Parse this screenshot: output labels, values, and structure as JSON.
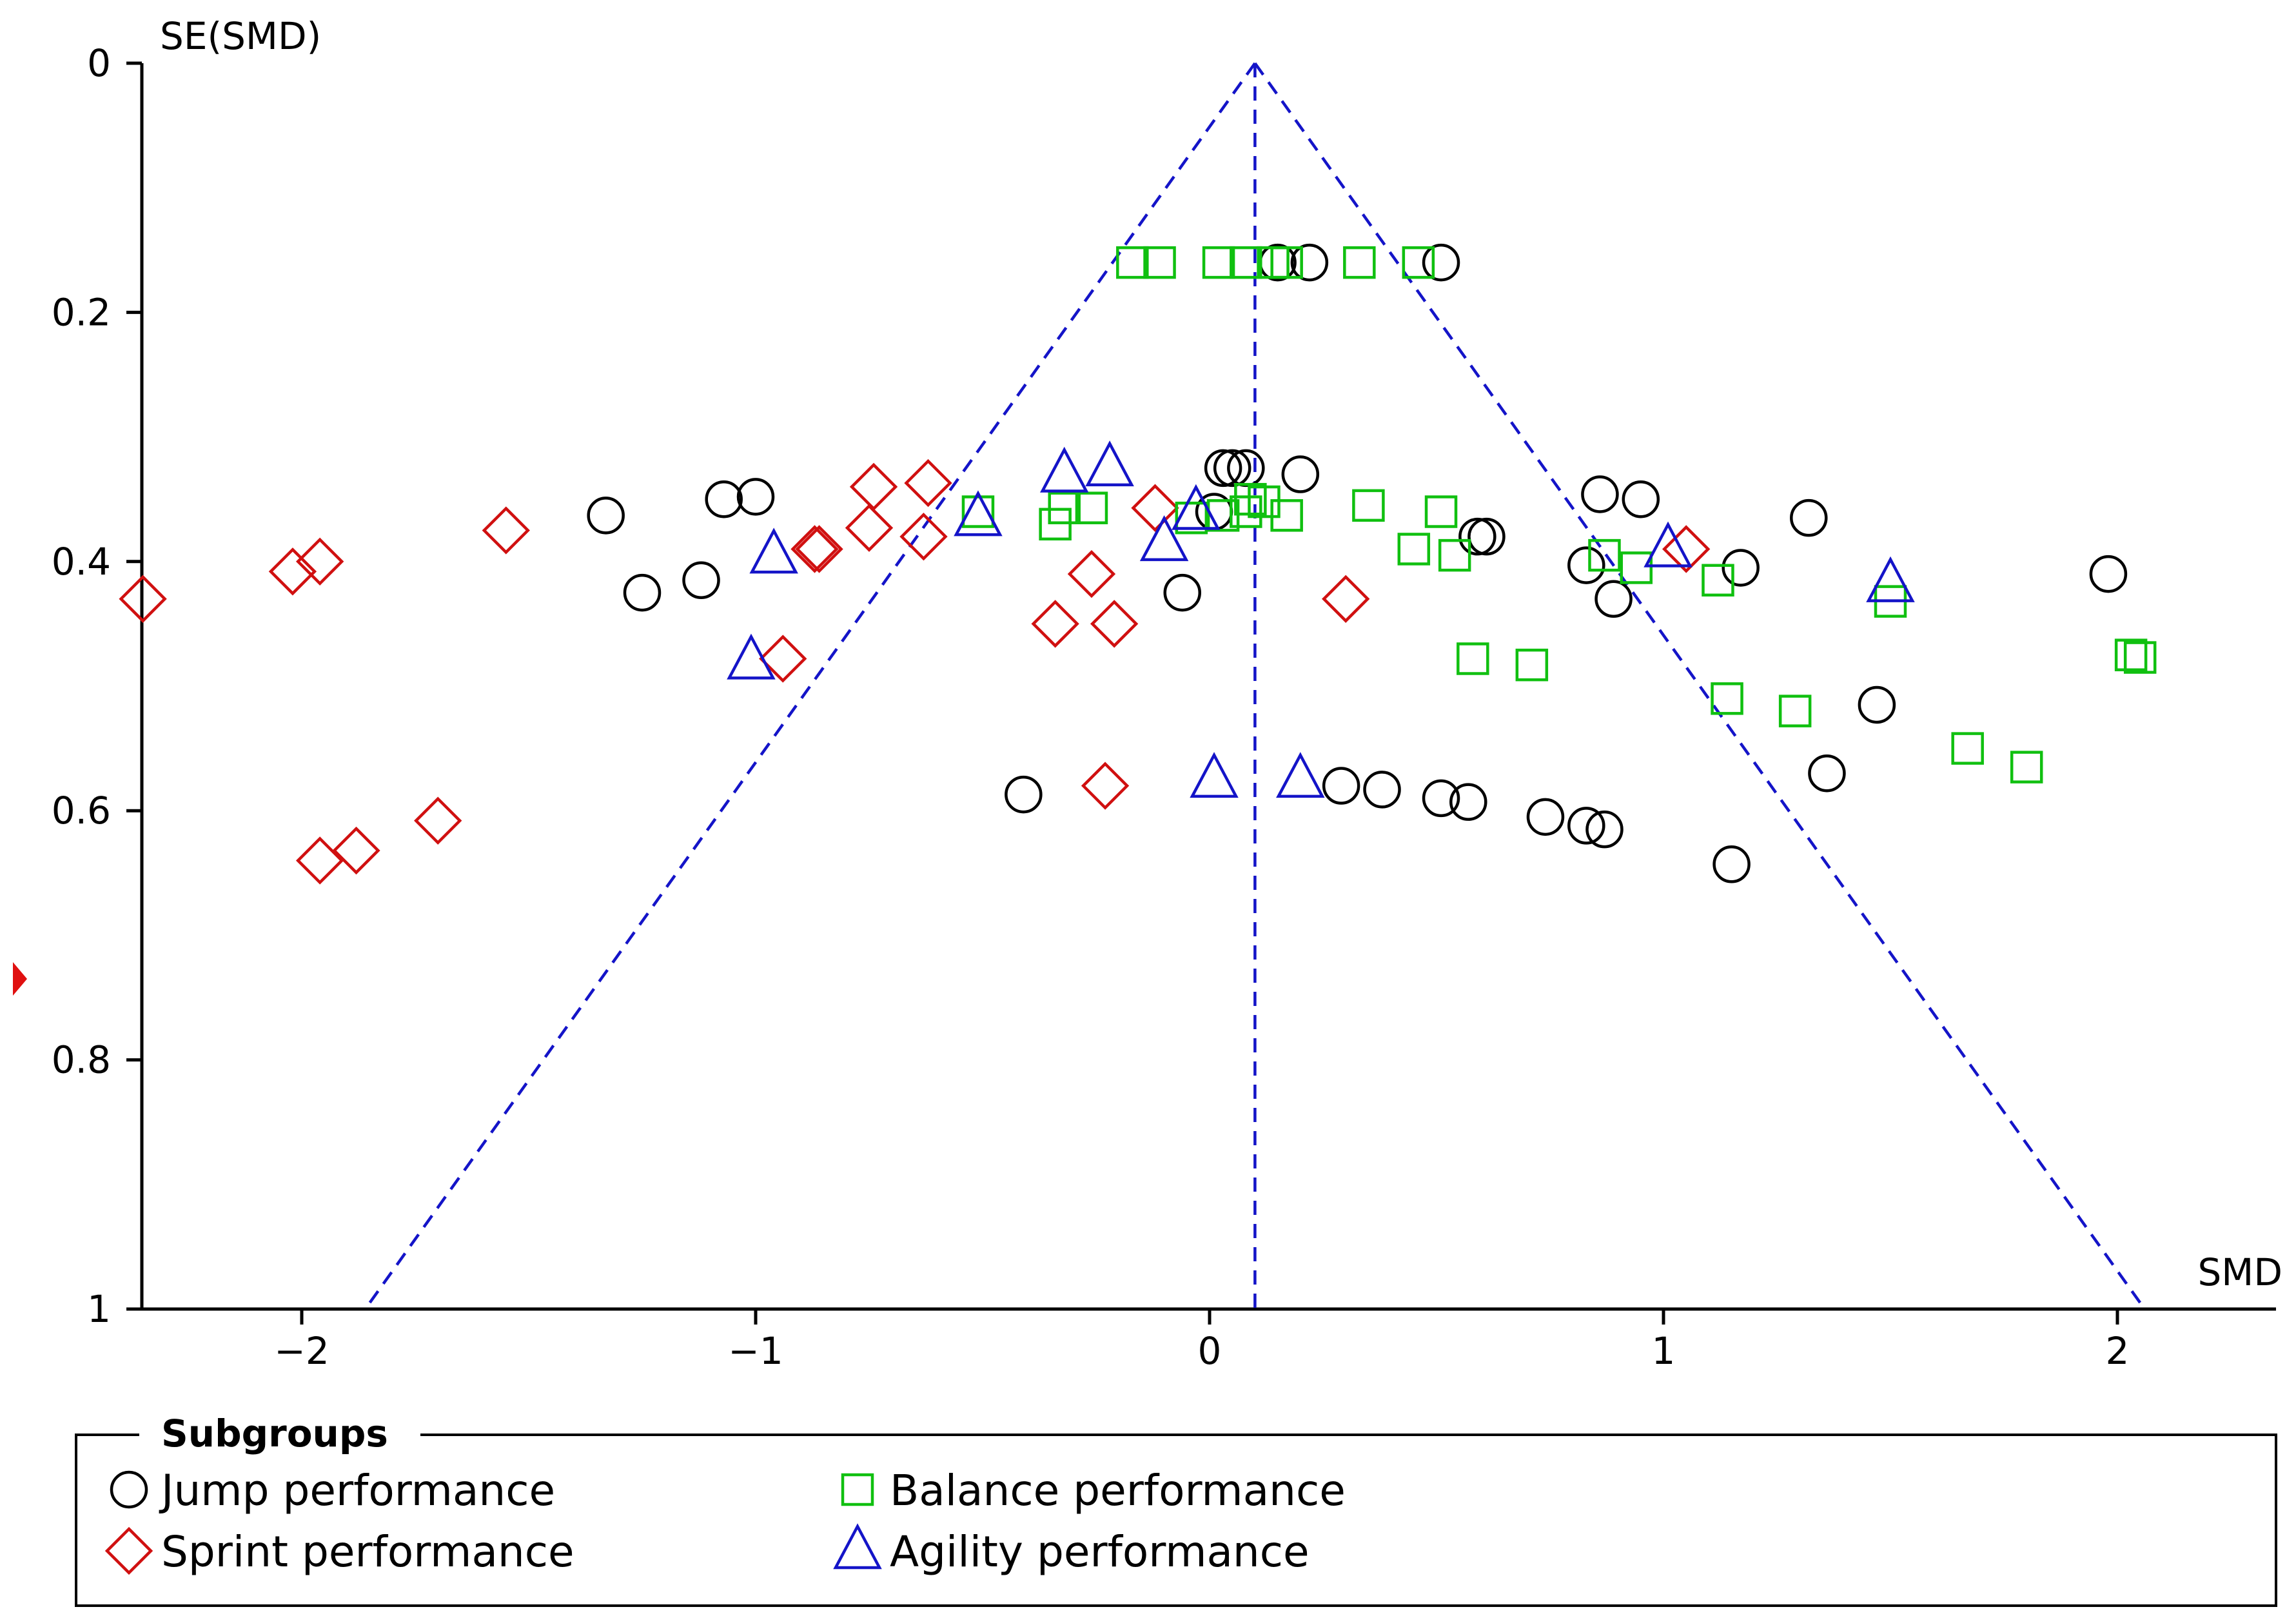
{
  "chart_data": {
    "type": "scatter",
    "title": "",
    "xlabel": "SMD",
    "ylabel": "SE(SMD)",
    "xlim": [
      -2.38,
      2.38
    ],
    "ylim": [
      0,
      1
    ],
    "y_inverted": true,
    "x_ticks": [
      -2,
      -1,
      0,
      1,
      2
    ],
    "x_tick_labels": [
      "−2",
      "−1",
      "0",
      "1",
      "2"
    ],
    "y_ticks": [
      0,
      0.2,
      0.4,
      0.6,
      0.8,
      1
    ],
    "y_tick_labels": [
      "0",
      "0.2",
      "0.4",
      "0.6",
      "0.8",
      "1"
    ],
    "funnel": {
      "pooled_smd": 0.1,
      "apex_se": 0,
      "left_base_smd": -1.86,
      "right_base_smd": 2.06,
      "base_se": 1
    },
    "egger_marker_se": 0.735,
    "legend_title": "Subgroups",
    "series": [
      {
        "name": "Jump performance",
        "marker": "circle",
        "color": "#000000",
        "points": [
          [
            0.15,
            0.16
          ],
          [
            0.22,
            0.16
          ],
          [
            0.51,
            0.16
          ],
          [
            0.03,
            0.325
          ],
          [
            0.05,
            0.325
          ],
          [
            0.08,
            0.325
          ],
          [
            0.2,
            0.33
          ],
          [
            0.01,
            0.36
          ],
          [
            -1.33,
            0.363
          ],
          [
            -1.07,
            0.35
          ],
          [
            -1.0,
            0.348
          ],
          [
            -1.12,
            0.415
          ],
          [
            -1.25,
            0.425
          ],
          [
            -0.06,
            0.425
          ],
          [
            0.59,
            0.38
          ],
          [
            0.61,
            0.38
          ],
          [
            0.86,
            0.346
          ],
          [
            0.95,
            0.35
          ],
          [
            1.32,
            0.365
          ],
          [
            0.83,
            0.403
          ],
          [
            1.17,
            0.405
          ],
          [
            0.89,
            0.43
          ],
          [
            1.98,
            0.41
          ],
          [
            1.47,
            0.515
          ],
          [
            1.36,
            0.57
          ],
          [
            -0.41,
            0.587
          ],
          [
            0.29,
            0.58
          ],
          [
            0.38,
            0.583
          ],
          [
            0.51,
            0.59
          ],
          [
            0.57,
            0.593
          ],
          [
            0.74,
            0.605
          ],
          [
            0.83,
            0.612
          ],
          [
            0.87,
            0.615
          ],
          [
            1.15,
            0.643
          ]
        ]
      },
      {
        "name": "Sprint performance",
        "marker": "diamond",
        "color": "#d01010",
        "points": [
          [
            -2.35,
            0.43
          ],
          [
            -2.02,
            0.408
          ],
          [
            -1.96,
            0.4
          ],
          [
            -1.55,
            0.375
          ],
          [
            -0.87,
            0.39
          ],
          [
            -0.86,
            0.39
          ],
          [
            -0.74,
            0.34
          ],
          [
            -0.75,
            0.373
          ],
          [
            -0.62,
            0.337
          ],
          [
            -0.63,
            0.38
          ],
          [
            -0.12,
            0.357
          ],
          [
            -0.26,
            0.41
          ],
          [
            -0.34,
            0.45
          ],
          [
            -0.21,
            0.45
          ],
          [
            0.3,
            0.43
          ],
          [
            1.05,
            0.39
          ],
          [
            -0.94,
            0.478
          ],
          [
            -1.96,
            0.64
          ],
          [
            -1.88,
            0.632
          ],
          [
            -1.7,
            0.608
          ],
          [
            -0.23,
            0.58
          ]
        ]
      },
      {
        "name": "Balance performance",
        "marker": "square",
        "color": "#10c010",
        "points": [
          [
            -0.17,
            0.16
          ],
          [
            -0.11,
            0.16
          ],
          [
            0.02,
            0.16
          ],
          [
            0.08,
            0.16
          ],
          [
            0.14,
            0.16
          ],
          [
            0.17,
            0.16
          ],
          [
            0.33,
            0.16
          ],
          [
            0.46,
            0.16
          ],
          [
            -0.51,
            0.36
          ],
          [
            -0.34,
            0.37
          ],
          [
            -0.32,
            0.357
          ],
          [
            -0.26,
            0.357
          ],
          [
            -0.04,
            0.365
          ],
          [
            0.03,
            0.363
          ],
          [
            0.08,
            0.36
          ],
          [
            0.09,
            0.35
          ],
          [
            0.12,
            0.352
          ],
          [
            0.17,
            0.363
          ],
          [
            0.35,
            0.355
          ],
          [
            0.51,
            0.36
          ],
          [
            0.45,
            0.39
          ],
          [
            0.54,
            0.395
          ],
          [
            0.87,
            0.395
          ],
          [
            0.94,
            0.405
          ],
          [
            1.12,
            0.415
          ],
          [
            1.5,
            0.432
          ],
          [
            0.58,
            0.478
          ],
          [
            0.71,
            0.483
          ],
          [
            1.14,
            0.51
          ],
          [
            1.29,
            0.52
          ],
          [
            1.67,
            0.55
          ],
          [
            1.8,
            0.565
          ],
          [
            2.03,
            0.475
          ],
          [
            2.05,
            0.477
          ]
        ]
      },
      {
        "name": "Agility performance",
        "marker": "triangle",
        "color": "#1414c8",
        "points": [
          [
            -0.32,
            0.33
          ],
          [
            -0.22,
            0.325
          ],
          [
            -0.51,
            0.365
          ],
          [
            -0.03,
            0.36
          ],
          [
            -0.1,
            0.385
          ],
          [
            -0.96,
            0.395
          ],
          [
            1.01,
            0.39
          ],
          [
            1.5,
            0.418
          ],
          [
            -1.01,
            0.48
          ],
          [
            0.01,
            0.575
          ],
          [
            0.2,
            0.575
          ]
        ]
      }
    ]
  }
}
